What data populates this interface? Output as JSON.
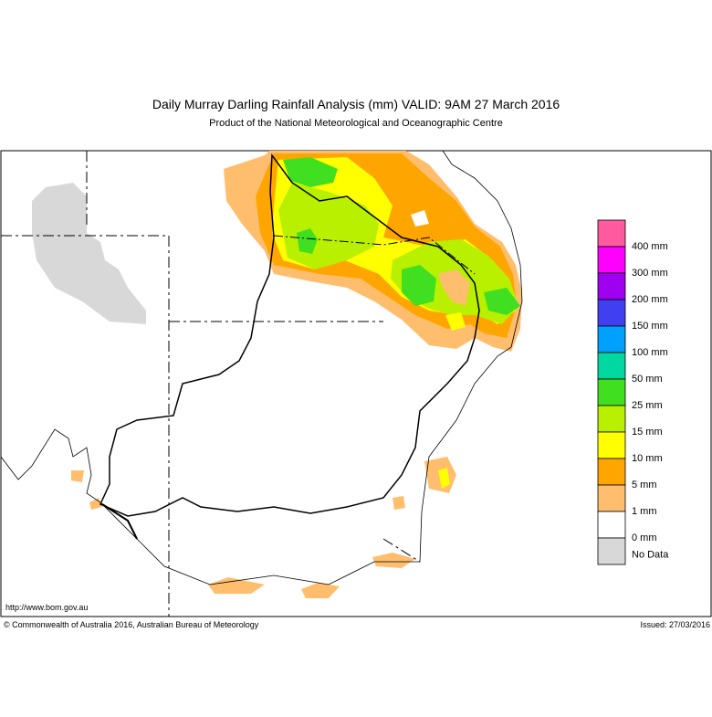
{
  "header": {
    "title": "Daily Murray Darling Rainfall Analysis (mm)  VALID: 9AM 27 March 2016",
    "subtitle": "Product of the National Meteorological and Oceanographic Centre"
  },
  "legend": {
    "colors": [
      "#ff5aa0",
      "#ff00ff",
      "#a000f0",
      "#4040f0",
      "#00a0ff",
      "#00d8a0",
      "#40e020",
      "#b8f000",
      "#ffff00",
      "#ffa500",
      "#ffbe6e",
      "#ffffff",
      "#d8d8d8"
    ],
    "labels": [
      "400 mm",
      "300 mm",
      "200 mm",
      "150 mm",
      "100 mm",
      "50 mm",
      "25 mm",
      "15 mm",
      "10 mm",
      "5 mm",
      "1 mm",
      "0 mm",
      "No Data"
    ]
  },
  "footer": {
    "url": "http://www.bom.gov.au",
    "copyright": "© Commonwealth of Australia 2016, Australian Bureau of Meteorology",
    "issued": "Issued: 27/03/2016"
  }
}
